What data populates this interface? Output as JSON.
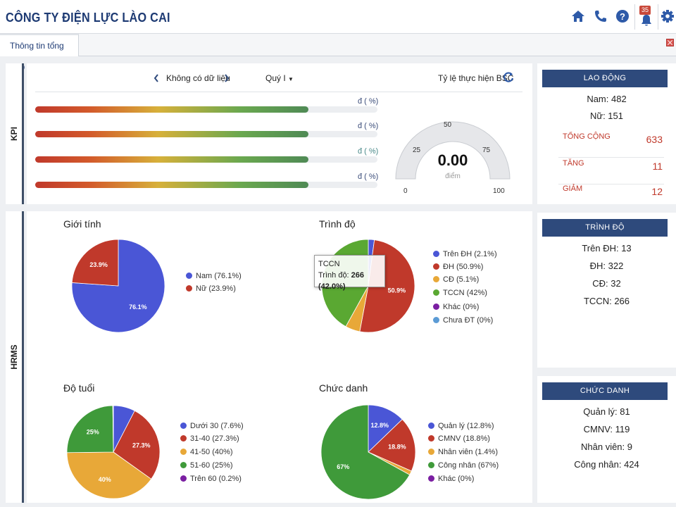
{
  "app": {
    "title": "CÔNG TY ĐIỆN LỰC LÀO CAI",
    "notification_count": "35"
  },
  "tabs": [
    {
      "label": "Thông tin tổng hợp"
    }
  ],
  "side_labels": {
    "kpi": "KPI",
    "hrms": "HRMS"
  },
  "kpi": {
    "nav_text": "Không có dữ liệu",
    "period": "Quý I",
    "title": "Tỷ lệ thực hiện BSC",
    "bars": [
      {
        "label": "đ ( %)",
        "label_color": "#3b4d7a"
      },
      {
        "label": "đ ( %)",
        "label_color": "#3b4d7a"
      },
      {
        "label": "đ ( %)",
        "label_color": "#4a8a8a"
      },
      {
        "label": "đ ( %)",
        "label_color": "#3b4d7a"
      }
    ],
    "gauge": {
      "value": "0.00",
      "unit": "điểm",
      "ticks": [
        "0",
        "25",
        "50",
        "75",
        "100"
      ]
    }
  },
  "cards": {
    "lao_dong": {
      "title": "LAO ĐỘNG",
      "nam": "Nam: 482",
      "nu": "Nữ: 151",
      "totals": [
        {
          "label": "TỔNG CỘNG",
          "value": "633"
        },
        {
          "label": "TĂNG",
          "value": "11"
        },
        {
          "label": "GIẢM",
          "value": "12"
        }
      ]
    },
    "trinh_do": {
      "title": "TRÌNH ĐỘ",
      "lines": [
        "Trên ĐH: 13",
        "ĐH: 322",
        "CĐ: 32",
        "TCCN: 266"
      ]
    },
    "chuc_danh": {
      "title": "CHỨC DANH",
      "lines": [
        "Quản lý: 81",
        "CMNV: 119",
        "Nhân viên: 9",
        "Công nhân: 424"
      ]
    }
  },
  "charts": {
    "gioi_tinh": {
      "title": "Giới tính",
      "legend": [
        "Nam (76.1%)",
        "Nữ (23.9%)"
      ],
      "labels": [
        "76.1%",
        "23.9%"
      ]
    },
    "trinh_do": {
      "title": "Trình độ",
      "legend": [
        "Trên ĐH (2.1%)",
        "ĐH (50.9%)",
        "CĐ (5.1%)",
        "TCCN (42%)",
        "Khác (0%)",
        "Chưa ĐT (0%)"
      ],
      "labels": [
        "50.9%"
      ],
      "tooltip": {
        "line1": "TCCN",
        "line2_prefix": "Trình độ: ",
        "line2_value": "266 (42.0%)"
      }
    },
    "do_tuoi": {
      "title": "Độ tuổi",
      "legend": [
        "Dưới 30 (7.6%)",
        "31-40 (27.3%)",
        "41-50 (40%)",
        "51-60 (25%)",
        "Trên 60 (0.2%)"
      ],
      "labels": [
        "27.3%",
        "40%",
        "25%"
      ]
    },
    "chuc_danh": {
      "title": "Chức danh",
      "legend": [
        "Quản lý (12.8%)",
        "CMNV (18.8%)",
        "Nhân viên (1.4%)",
        "Công nhân (67%)",
        "Khác (0%)"
      ],
      "labels": [
        "12.8%",
        "18.8%",
        "67%"
      ]
    }
  },
  "chart_data": [
    {
      "type": "pie",
      "title": "Giới tính",
      "categories": [
        "Nam",
        "Nữ"
      ],
      "values": [
        76.1,
        23.9
      ],
      "colors": [
        "#4a56d6",
        "#c0392b"
      ]
    },
    {
      "type": "pie",
      "title": "Trình độ",
      "categories": [
        "Trên ĐH",
        "ĐH",
        "CĐ",
        "TCCN",
        "Khác",
        "Chưa ĐT"
      ],
      "values": [
        2.1,
        50.9,
        5.1,
        42,
        0,
        0
      ],
      "colors": [
        "#4a56d6",
        "#c0392b",
        "#e8a838",
        "#5aa832",
        "#7b1fa2",
        "#5b9bd5"
      ]
    },
    {
      "type": "pie",
      "title": "Độ tuổi",
      "categories": [
        "Dưới 30",
        "31-40",
        "41-50",
        "51-60",
        "Trên 60"
      ],
      "values": [
        7.6,
        27.3,
        40,
        25,
        0.2
      ],
      "colors": [
        "#4a56d6",
        "#c0392b",
        "#e8a838",
        "#3f9a3a",
        "#7b1fa2"
      ]
    },
    {
      "type": "pie",
      "title": "Chức danh",
      "categories": [
        "Quản lý",
        "CMNV",
        "Nhân viên",
        "Công nhân",
        "Khác"
      ],
      "values": [
        12.8,
        18.8,
        1.4,
        67,
        0
      ],
      "colors": [
        "#4a56d6",
        "#c0392b",
        "#e8a838",
        "#3f9a3a",
        "#7b1fa2"
      ]
    },
    {
      "type": "gauge",
      "title": "Tỷ lệ thực hiện BSC",
      "value": 0.0,
      "ylim": [
        0,
        100
      ]
    }
  ]
}
